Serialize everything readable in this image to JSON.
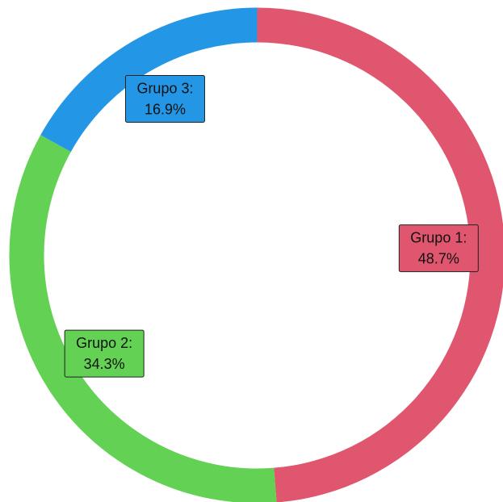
{
  "chart_data": {
    "type": "pie",
    "variant": "donut",
    "title": "",
    "slices": [
      {
        "label": "Grupo 1",
        "value": 48.7,
        "display": "48.7%",
        "color": "#e0566e"
      },
      {
        "label": "Grupo 2",
        "value": 34.3,
        "display": "34.3%",
        "color": "#63d154"
      },
      {
        "label": "Grupo 3",
        "value": 16.9,
        "display": "16.9%",
        "color": "#2397e5"
      }
    ],
    "start_angle": "top",
    "direction": "clockwise",
    "legend": "none",
    "labels": "inside-ring, boxed with slice color"
  }
}
